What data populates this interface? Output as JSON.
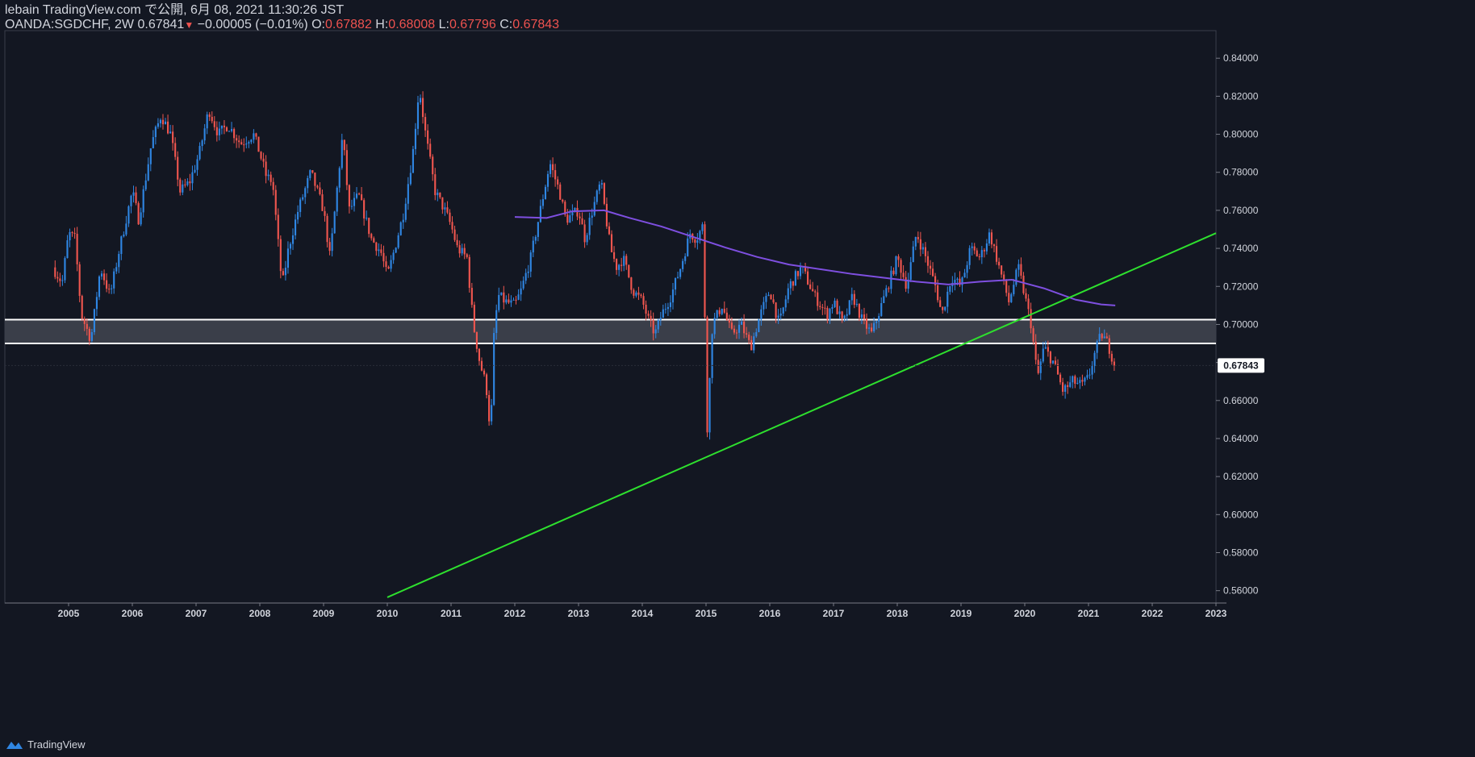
{
  "header": {
    "publisher": "lebain TradingView.com で公開, 6月 08, 2021 11:30:26 JST",
    "symbol": "OANDA:SGDCHF, 2W",
    "last": "0.67841",
    "change": "−0.00005 (−0.01%)",
    "o_label": "O:",
    "o_value": "0.67882",
    "h_label": "H:",
    "h_value": "0.68008",
    "l_label": "L:",
    "l_value": "0.67796",
    "c_label": "C:",
    "c_value": "0.67843"
  },
  "footer": {
    "brand": "TradingView"
  },
  "colors": {
    "background": "#131722",
    "up": "#2f86e3",
    "down": "#f0564f",
    "moving_average": "#7e4fe0",
    "trendline": "#2ee02e",
    "zone_fill": "#3a3e49",
    "zone_border": "#ffffff",
    "price_tag_bg": "#ffffff",
    "price_tag_text": "#131722"
  },
  "chart_data": {
    "type": "candlestick",
    "symbol": "OANDA:SGDCHF",
    "interval": "2W",
    "x_tick_labels": [
      "2005",
      "2006",
      "2007",
      "2008",
      "2009",
      "2010",
      "2011",
      "2012",
      "2013",
      "2014",
      "2015",
      "2016",
      "2017",
      "2018",
      "2019",
      "2020",
      "2021",
      "2022",
      "2023"
    ],
    "y_tick_labels": [
      "0.56000",
      "0.58000",
      "0.60000",
      "0.62000",
      "0.64000",
      "0.66000",
      "0.68000",
      "0.70000",
      "0.72000",
      "0.74000",
      "0.76000",
      "0.78000",
      "0.80000",
      "0.82000",
      "0.84000"
    ],
    "xlim": [
      2004.0,
      2023.0
    ],
    "ylim": [
      0.5535,
      0.8545
    ],
    "current_price": "0.67843",
    "price_path": [
      [
        2004.75,
        0.73
      ],
      [
        2004.9,
        0.722
      ],
      [
        2005.0,
        0.748
      ],
      [
        2005.1,
        0.745
      ],
      [
        2005.2,
        0.705
      ],
      [
        2005.35,
        0.692
      ],
      [
        2005.5,
        0.73
      ],
      [
        2005.65,
        0.715
      ],
      [
        2005.8,
        0.74
      ],
      [
        2006.0,
        0.77
      ],
      [
        2006.1,
        0.755
      ],
      [
        2006.3,
        0.795
      ],
      [
        2006.45,
        0.81
      ],
      [
        2006.6,
        0.8
      ],
      [
        2006.75,
        0.77
      ],
      [
        2006.9,
        0.775
      ],
      [
        2007.05,
        0.79
      ],
      [
        2007.2,
        0.813
      ],
      [
        2007.35,
        0.8
      ],
      [
        2007.5,
        0.805
      ],
      [
        2007.7,
        0.795
      ],
      [
        2007.9,
        0.8
      ],
      [
        2008.0,
        0.79
      ],
      [
        2008.1,
        0.778
      ],
      [
        2008.2,
        0.775
      ],
      [
        2008.35,
        0.72
      ],
      [
        2008.45,
        0.74
      ],
      [
        2008.6,
        0.76
      ],
      [
        2008.8,
        0.78
      ],
      [
        2009.0,
        0.76
      ],
      [
        2009.1,
        0.735
      ],
      [
        2009.3,
        0.8
      ],
      [
        2009.4,
        0.76
      ],
      [
        2009.55,
        0.768
      ],
      [
        2009.75,
        0.745
      ],
      [
        2009.9,
        0.738
      ],
      [
        2010.0,
        0.725
      ],
      [
        2010.1,
        0.738
      ],
      [
        2010.25,
        0.758
      ],
      [
        2010.4,
        0.79
      ],
      [
        2010.5,
        0.825
      ],
      [
        2010.6,
        0.8
      ],
      [
        2010.75,
        0.77
      ],
      [
        2010.9,
        0.76
      ],
      [
        2011.0,
        0.752
      ],
      [
        2011.1,
        0.74
      ],
      [
        2011.25,
        0.735
      ],
      [
        2011.35,
        0.7
      ],
      [
        2011.45,
        0.68
      ],
      [
        2011.55,
        0.668
      ],
      [
        2011.62,
        0.642
      ],
      [
        2011.68,
        0.7
      ],
      [
        2011.75,
        0.715
      ],
      [
        2011.85,
        0.712
      ],
      [
        2012.0,
        0.71
      ],
      [
        2012.1,
        0.718
      ],
      [
        2012.25,
        0.735
      ],
      [
        2012.4,
        0.76
      ],
      [
        2012.55,
        0.785
      ],
      [
        2012.7,
        0.77
      ],
      [
        2012.8,
        0.755
      ],
      [
        2013.0,
        0.76
      ],
      [
        2013.1,
        0.745
      ],
      [
        2013.2,
        0.758
      ],
      [
        2013.35,
        0.775
      ],
      [
        2013.5,
        0.74
      ],
      [
        2013.6,
        0.73
      ],
      [
        2013.7,
        0.735
      ],
      [
        2013.85,
        0.718
      ],
      [
        2014.0,
        0.712
      ],
      [
        2014.1,
        0.702
      ],
      [
        2014.2,
        0.695
      ],
      [
        2014.3,
        0.705
      ],
      [
        2014.45,
        0.715
      ],
      [
        2014.6,
        0.73
      ],
      [
        2014.75,
        0.748
      ],
      [
        2014.85,
        0.745
      ],
      [
        2014.95,
        0.752
      ],
      [
        2015.02,
        0.645
      ],
      [
        2015.1,
        0.7
      ],
      [
        2015.25,
        0.71
      ],
      [
        2015.4,
        0.695
      ],
      [
        2015.55,
        0.7
      ],
      [
        2015.7,
        0.688
      ],
      [
        2015.85,
        0.705
      ],
      [
        2016.0,
        0.718
      ],
      [
        2016.15,
        0.7
      ],
      [
        2016.3,
        0.72
      ],
      [
        2016.5,
        0.73
      ],
      [
        2016.7,
        0.715
      ],
      [
        2016.9,
        0.705
      ],
      [
        2017.0,
        0.712
      ],
      [
        2017.15,
        0.7
      ],
      [
        2017.3,
        0.715
      ],
      [
        2017.45,
        0.702
      ],
      [
        2017.6,
        0.695
      ],
      [
        2017.75,
        0.71
      ],
      [
        2017.9,
        0.725
      ],
      [
        2018.0,
        0.735
      ],
      [
        2018.15,
        0.72
      ],
      [
        2018.3,
        0.748
      ],
      [
        2018.45,
        0.735
      ],
      [
        2018.6,
        0.72
      ],
      [
        2018.7,
        0.705
      ],
      [
        2018.85,
        0.725
      ],
      [
        2019.0,
        0.72
      ],
      [
        2019.15,
        0.74
      ],
      [
        2019.3,
        0.735
      ],
      [
        2019.45,
        0.748
      ],
      [
        2019.6,
        0.73
      ],
      [
        2019.75,
        0.712
      ],
      [
        2019.9,
        0.73
      ],
      [
        2020.0,
        0.715
      ],
      [
        2020.1,
        0.7
      ],
      [
        2020.2,
        0.672
      ],
      [
        2020.3,
        0.688
      ],
      [
        2020.45,
        0.68
      ],
      [
        2020.6,
        0.665
      ],
      [
        2020.75,
        0.67
      ],
      [
        2020.9,
        0.668
      ],
      [
        2021.0,
        0.672
      ],
      [
        2021.1,
        0.685
      ],
      [
        2021.2,
        0.695
      ],
      [
        2021.3,
        0.69
      ],
      [
        2021.42,
        0.678
      ]
    ],
    "moving_average": [
      [
        2012.0,
        0.7565
      ],
      [
        2012.5,
        0.756
      ],
      [
        2012.9,
        0.7595
      ],
      [
        2013.4,
        0.76
      ],
      [
        2013.8,
        0.756
      ],
      [
        2014.3,
        0.7515
      ],
      [
        2014.8,
        0.746
      ],
      [
        2015.3,
        0.7405
      ],
      [
        2015.8,
        0.7355
      ],
      [
        2016.3,
        0.7315
      ],
      [
        2016.8,
        0.729
      ],
      [
        2017.3,
        0.7265
      ],
      [
        2017.8,
        0.7245
      ],
      [
        2018.3,
        0.7225
      ],
      [
        2018.8,
        0.721
      ],
      [
        2019.3,
        0.7225
      ],
      [
        2019.8,
        0.7235
      ],
      [
        2020.3,
        0.719
      ],
      [
        2020.8,
        0.713
      ],
      [
        2021.2,
        0.7105
      ],
      [
        2021.42,
        0.71
      ]
    ],
    "trendline": [
      [
        2010.0,
        0.5565
      ],
      [
        2023.0,
        0.748
      ]
    ],
    "zone": [
      0.69,
      0.7025
    ]
  }
}
